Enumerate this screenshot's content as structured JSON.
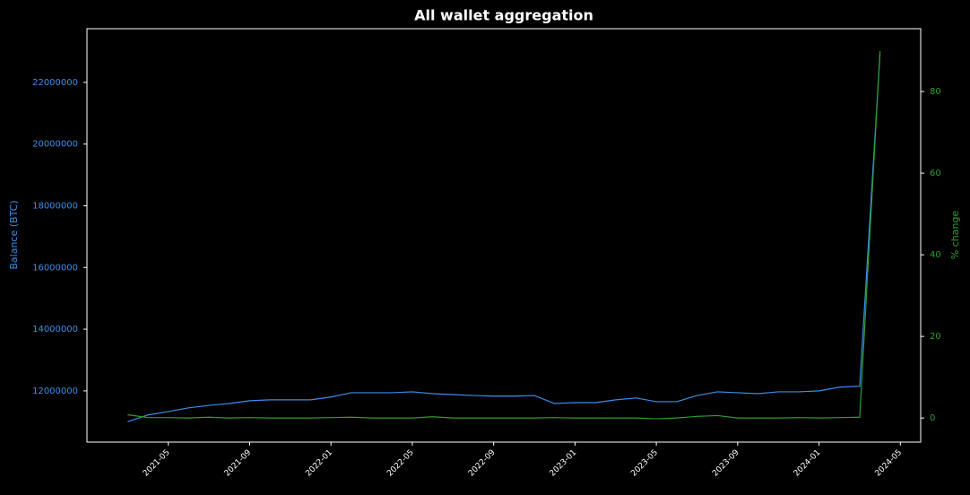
{
  "chart_data": {
    "type": "line",
    "title": "All wallet aggregation",
    "y_label": "Balance (BTC)",
    "y2_label": "% change",
    "x": [
      "2021-03",
      "2021-04",
      "2021-05",
      "2021-06",
      "2021-07",
      "2021-08",
      "2021-09",
      "2021-10",
      "2021-11",
      "2021-12",
      "2022-01",
      "2022-02",
      "2022-03",
      "2022-04",
      "2022-05",
      "2022-06",
      "2022-07",
      "2022-08",
      "2022-09",
      "2022-10",
      "2022-11",
      "2022-12",
      "2023-01",
      "2023-02",
      "2023-03",
      "2023-04",
      "2023-05",
      "2023-06",
      "2023-07",
      "2023-08",
      "2023-09",
      "2023-10",
      "2023-11",
      "2023-12",
      "2024-01",
      "2024-02",
      "2024-03",
      "2024-04"
    ],
    "series": [
      {
        "name": "Balance (BTC)",
        "color": "#3b8eea",
        "axis": "y",
        "values": [
          11000000,
          11220000,
          11330000,
          11450000,
          11530000,
          11590000,
          11680000,
          11710000,
          11710000,
          11710000,
          11800000,
          11940000,
          11940000,
          11940000,
          11970000,
          11910000,
          11880000,
          11850000,
          11830000,
          11830000,
          11850000,
          11590000,
          11620000,
          11620000,
          11710000,
          11770000,
          11650000,
          11650000,
          11850000,
          11970000,
          11940000,
          11910000,
          11970000,
          11970000,
          12000000,
          12120000,
          12150000,
          22930000
        ]
      },
      {
        "name": "% change",
        "color": "#2ca02c",
        "axis": "y2",
        "values": [
          0.8,
          0.1,
          0.1,
          0.0,
          0.2,
          0.0,
          0.1,
          0.0,
          0.0,
          0.0,
          0.1,
          0.2,
          0.0,
          0.0,
          0.0,
          0.3,
          0.0,
          0.0,
          0.0,
          0.0,
          0.0,
          0.1,
          0.0,
          0.0,
          0.0,
          0.0,
          -0.2,
          0.0,
          0.4,
          0.6,
          0.0,
          0.0,
          0.0,
          0.1,
          0.0,
          0.1,
          0.2,
          89.9
        ]
      }
    ],
    "xlim": [
      "2021-01",
      "2024-06"
    ],
    "xticks": [
      "2021-05",
      "2021-09",
      "2022-01",
      "2022-05",
      "2022-09",
      "2023-01",
      "2023-05",
      "2023-09",
      "2024-01",
      "2024-05"
    ],
    "ylim": [
      10340000,
      23740000
    ],
    "yticks": [
      12000000,
      14000000,
      16000000,
      18000000,
      20000000,
      22000000
    ],
    "y2lim": [
      -5.9,
      95.4
    ],
    "y2ticks": [
      0,
      20,
      40,
      60,
      80
    ],
    "grid": false
  }
}
